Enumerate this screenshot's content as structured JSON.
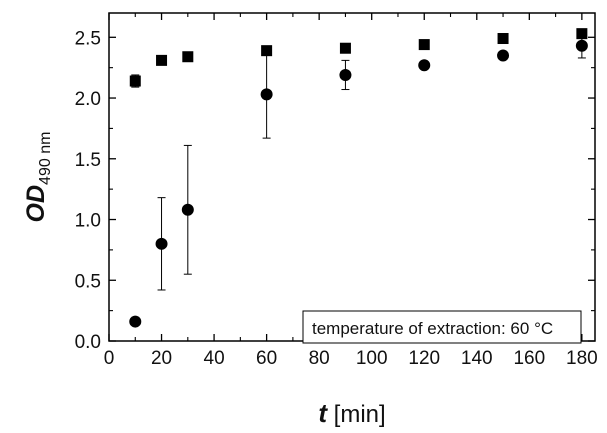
{
  "chart_data": {
    "type": "scatter",
    "xlabel": {
      "main": "t",
      "unit": " [min]"
    },
    "ylabel": {
      "main": "OD",
      "sub": "490 nm"
    },
    "xlim": [
      0,
      185
    ],
    "ylim": [
      0.0,
      2.7
    ],
    "x_ticks": [
      0,
      20,
      40,
      60,
      80,
      100,
      120,
      140,
      160,
      180
    ],
    "y_ticks": [
      0.0,
      0.5,
      1.0,
      1.5,
      2.0,
      2.5
    ],
    "y_tick_labels": [
      "0.0",
      "0.5",
      "1.0",
      "1.5",
      "2.0",
      "2.5"
    ],
    "x_tick_labels": [
      "0",
      "20",
      "40",
      "60",
      "80",
      "100",
      "120",
      "140",
      "160",
      "180"
    ],
    "annotation": "temperature of extraction: 60 °C",
    "series": [
      {
        "marker": "square",
        "color": "#000000",
        "points": [
          {
            "x": 10,
            "y": 2.14,
            "err": 0.05
          },
          {
            "x": 20,
            "y": 2.31,
            "err": 0
          },
          {
            "x": 30,
            "y": 2.34,
            "err": 0
          },
          {
            "x": 60,
            "y": 2.39,
            "err": 0
          },
          {
            "x": 90,
            "y": 2.41,
            "err": 0
          },
          {
            "x": 120,
            "y": 2.44,
            "err": 0
          },
          {
            "x": 150,
            "y": 2.49,
            "err": 0
          },
          {
            "x": 180,
            "y": 2.53,
            "err": 0
          }
        ]
      },
      {
        "marker": "circle",
        "color": "#000000",
        "points": [
          {
            "x": 10,
            "y": 0.16,
            "err": 0
          },
          {
            "x": 20,
            "y": 0.8,
            "err": 0.38
          },
          {
            "x": 30,
            "y": 1.08,
            "err": 0.53
          },
          {
            "x": 60,
            "y": 2.03,
            "err": 0.36
          },
          {
            "x": 90,
            "y": 2.19,
            "err": 0.12
          },
          {
            "x": 120,
            "y": 2.27,
            "err": 0
          },
          {
            "x": 150,
            "y": 2.35,
            "err": 0
          },
          {
            "x": 180,
            "y": 2.43,
            "err": 0.1
          }
        ]
      }
    ]
  }
}
